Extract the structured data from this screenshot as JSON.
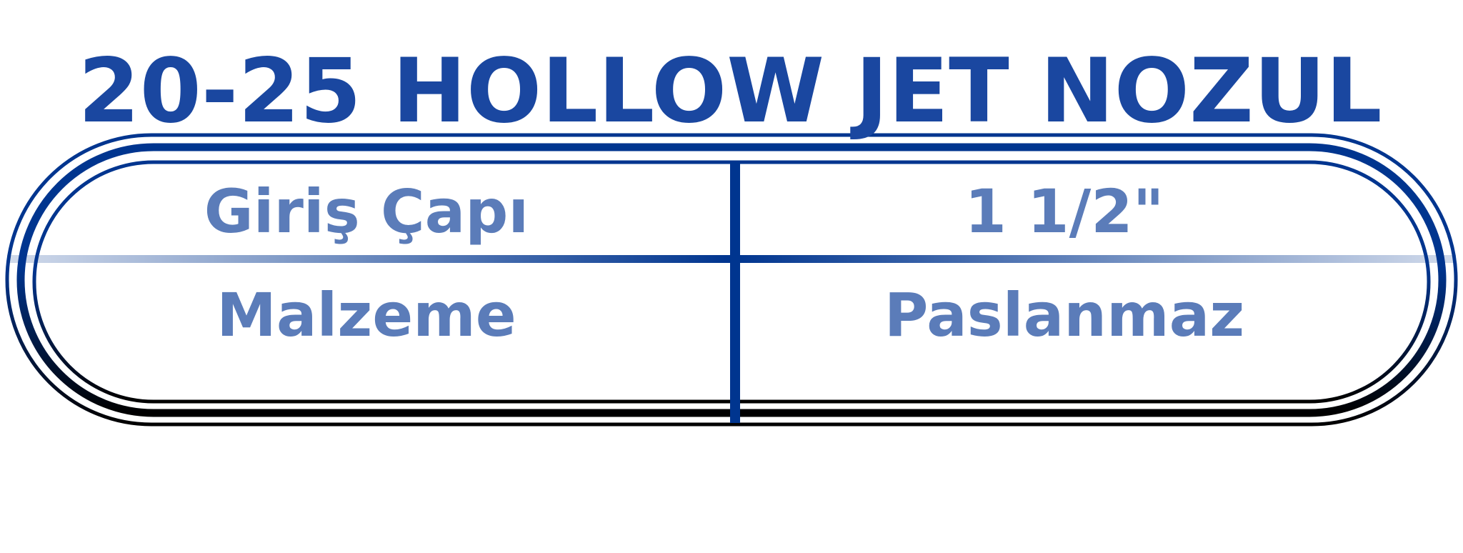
{
  "title": "20-25 HOLLOW JET NOZUL",
  "specs": [
    {
      "label": "Giriş Çapı",
      "value": "1 1/2\""
    },
    {
      "label": "Malzeme",
      "value": "Paslanmaz"
    }
  ],
  "colors": {
    "title": "#1A47A0",
    "cell_text": "#5B7CB9",
    "frame_top": "#00358F",
    "frame_bottom": "#000000",
    "divider": "#00358F"
  }
}
